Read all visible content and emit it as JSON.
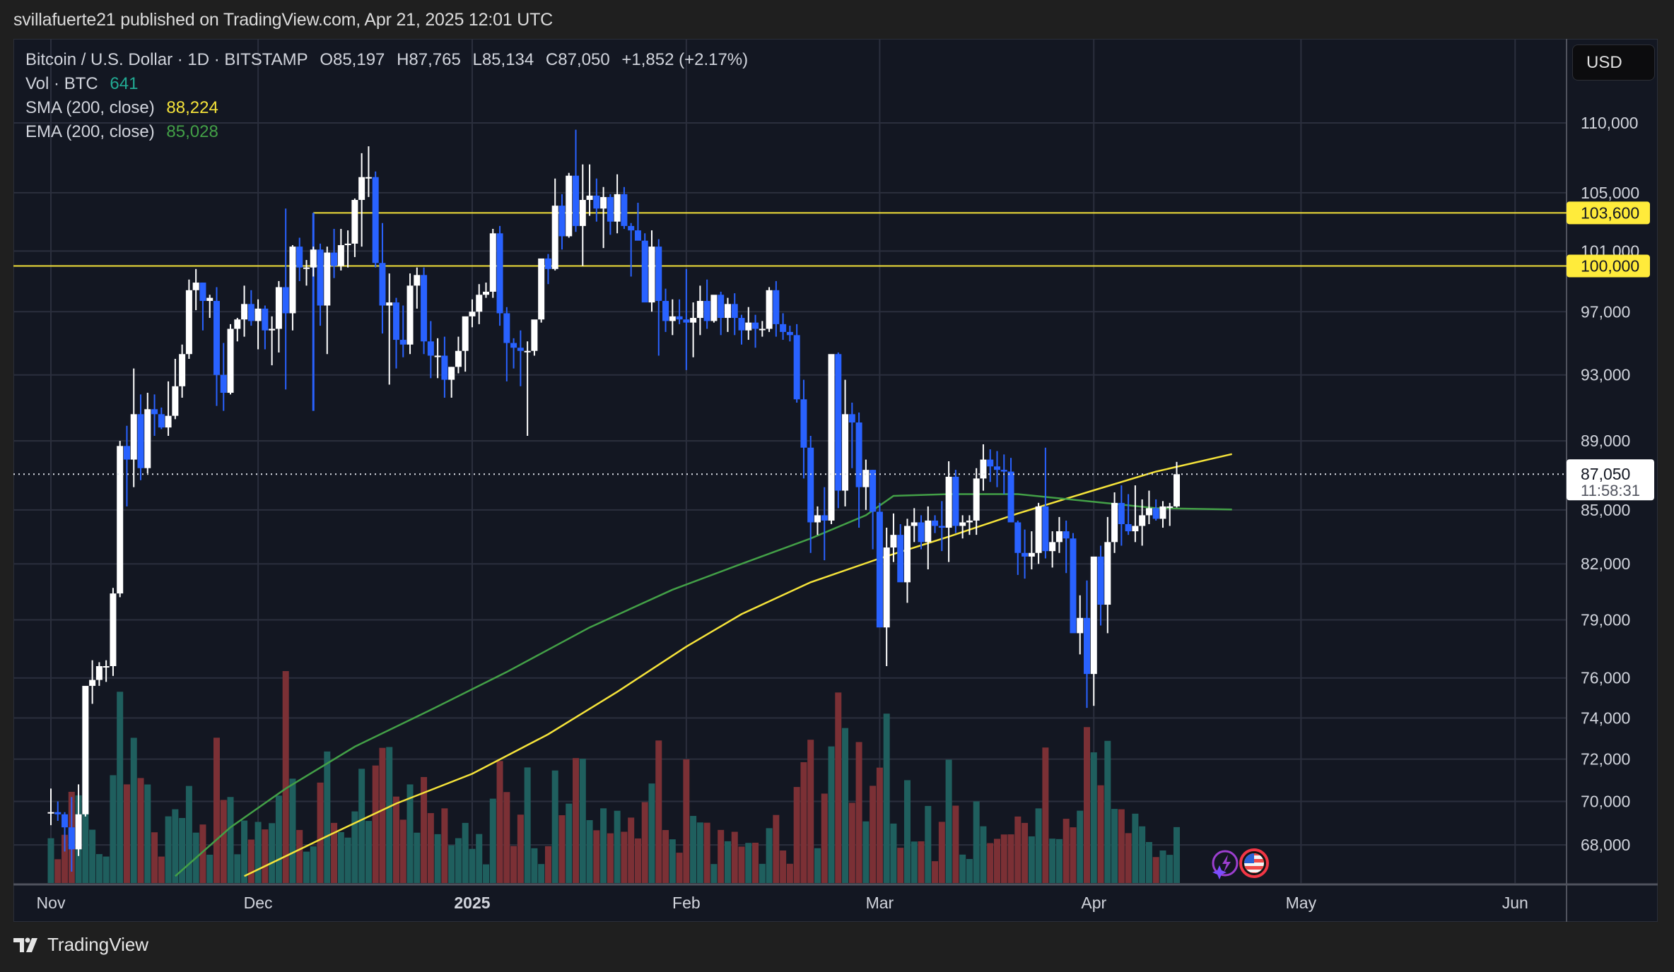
{
  "header": {
    "publish_line": "svillafuerte21 published on TradingView.com, Apr 21, 2025 12:01 UTC"
  },
  "legend": {
    "symbol_line": "Bitcoin / U.S. Dollar · 1D · BITSTAMP",
    "open": "O85,197",
    "high": "H87,765",
    "low": "L85,134",
    "close": "C87,050",
    "change": "+1,852 (+2.17%)",
    "volume_label": "Vol · BTC",
    "volume_value": "641",
    "sma_label": "SMA (200, close)",
    "sma_value": "88,224",
    "ema_label": "EMA (200, close)",
    "ema_value": "85,028"
  },
  "price_axis": {
    "currency_button": "USD",
    "ticks": [
      "110,000",
      "105,000",
      "101,000",
      "97,000",
      "93,000",
      "89,000",
      "85,000",
      "82,000",
      "79,000",
      "76,000",
      "74,000",
      "72,000",
      "70,000",
      "68,000"
    ],
    "tick_values": [
      110000,
      105000,
      101000,
      97000,
      93000,
      89000,
      85000,
      82000,
      79000,
      76000,
      74000,
      72000,
      70000,
      68000
    ],
    "last_price_label": "87,050",
    "countdown": "11:58:31",
    "level_labels": [
      "103,600",
      "100,000"
    ]
  },
  "time_axis": {
    "labels": [
      {
        "text": "Nov",
        "day": 0,
        "bold": false
      },
      {
        "text": "Dec",
        "day": 30,
        "bold": false
      },
      {
        "text": "2025",
        "day": 61,
        "bold": true
      },
      {
        "text": "Feb",
        "day": 92,
        "bold": false
      },
      {
        "text": "Mar",
        "day": 120,
        "bold": false
      },
      {
        "text": "Apr",
        "day": 151,
        "bold": false
      },
      {
        "text": "May",
        "day": 181,
        "bold": false
      },
      {
        "text": "Jun",
        "day": 212,
        "bold": false
      }
    ]
  },
  "footer": {
    "brand": "TradingView"
  },
  "colors": {
    "up_candle": "#ffffff",
    "down_candle": "#2962ff",
    "vol_up": "#1f5f5e",
    "vol_down": "#7b3035",
    "sma": "#f5e33a",
    "ema": "#43a047",
    "level_line": "#f5e33a",
    "grid": "#2b2f3d",
    "background": "#131722"
  },
  "chart_data": {
    "type": "candlestick",
    "title": "Bitcoin / U.S. Dollar · 1D · BITSTAMP",
    "xlabel": "",
    "ylabel": "USD",
    "y_scale": "log",
    "ylim": [
      66500,
      112000
    ],
    "x_start": "2024-11-01",
    "x_end": "2025-04-21",
    "grid": true,
    "legend_position": "top-left",
    "horizontal_levels": [
      103600,
      100000
    ],
    "last_close": 87050,
    "indicators": [
      {
        "name": "SMA (200, close)",
        "last": 88224,
        "color": "#f5e33a",
        "points": [
          [
            28,
            66600
          ],
          [
            40,
            68400
          ],
          [
            50,
            69900
          ],
          [
            61,
            71300
          ],
          [
            72,
            73200
          ],
          [
            82,
            75300
          ],
          [
            92,
            77600
          ],
          [
            100,
            79300
          ],
          [
            110,
            81000
          ],
          [
            120,
            82300
          ],
          [
            130,
            83500
          ],
          [
            140,
            84800
          ],
          [
            150,
            86000
          ],
          [
            160,
            87200
          ],
          [
            171,
            88224
          ]
        ]
      },
      {
        "name": "EMA (200, close)",
        "last": 85028,
        "color": "#43a047",
        "points": [
          [
            18,
            66600
          ],
          [
            26,
            68800
          ],
          [
            34,
            70600
          ],
          [
            44,
            72600
          ],
          [
            55,
            74400
          ],
          [
            66,
            76300
          ],
          [
            78,
            78600
          ],
          [
            90,
            80600
          ],
          [
            100,
            82000
          ],
          [
            110,
            83400
          ],
          [
            118,
            84700
          ],
          [
            122,
            85800
          ],
          [
            130,
            85900
          ],
          [
            140,
            85900
          ],
          [
            150,
            85500
          ],
          [
            160,
            85100
          ],
          [
            171,
            85028
          ]
        ]
      }
    ],
    "candles": [
      [
        0,
        69500,
        70600,
        68900,
        69500
      ],
      [
        1,
        69500,
        70000,
        69100,
        69400
      ],
      [
        2,
        69400,
        69500,
        67700,
        68800
      ],
      [
        3,
        68800,
        70200,
        66800,
        67800
      ],
      [
        4,
        67800,
        70800,
        67500,
        69400
      ],
      [
        5,
        69400,
        75300,
        69300,
        75600
      ],
      [
        6,
        75600,
        76900,
        74700,
        75900
      ],
      [
        7,
        75900,
        76800,
        75600,
        76600
      ],
      [
        8,
        76600,
        76900,
        75800,
        76600
      ],
      [
        9,
        76600,
        80700,
        76100,
        80400
      ],
      [
        10,
        80400,
        89000,
        80200,
        88700
      ],
      [
        11,
        88700,
        89900,
        85200,
        87900
      ],
      [
        12,
        87900,
        93400,
        86300,
        90600
      ],
      [
        13,
        90600,
        91800,
        86700,
        87400
      ],
      [
        14,
        87400,
        91900,
        87100,
        90900
      ],
      [
        15,
        90900,
        91800,
        89300,
        90600
      ],
      [
        16,
        90600,
        91000,
        89700,
        89800
      ],
      [
        17,
        89800,
        92600,
        89300,
        90500
      ],
      [
        18,
        90500,
        94000,
        90300,
        92300
      ],
      [
        19,
        92300,
        94900,
        91600,
        94300
      ],
      [
        20,
        94300,
        99100,
        94000,
        98400
      ],
      [
        21,
        98400,
        99800,
        97100,
        98900
      ],
      [
        22,
        98900,
        98900,
        95800,
        97700
      ],
      [
        23,
        97700,
        98100,
        96600,
        97900
      ],
      [
        24,
        97700,
        98600,
        91100,
        93000
      ],
      [
        25,
        93000,
        95000,
        90800,
        91900
      ],
      [
        26,
        91900,
        96200,
        91800,
        95900
      ],
      [
        27,
        95900,
        96600,
        95100,
        96500
      ],
      [
        28,
        96500,
        98700,
        95400,
        97500
      ],
      [
        29,
        97500,
        98400,
        96100,
        96400
      ],
      [
        30,
        96400,
        97800,
        94600,
        97200
      ],
      [
        31,
        97200,
        97400,
        94600,
        95800
      ],
      [
        32,
        95800,
        96700,
        93600,
        95900
      ],
      [
        33,
        95900,
        99000,
        94400,
        98600
      ],
      [
        34,
        98600,
        103900,
        92100,
        96900
      ],
      [
        35,
        96900,
        101400,
        95800,
        101300
      ],
      [
        36,
        101300,
        101900,
        99000,
        99900
      ],
      [
        37,
        99900,
        100400,
        98700,
        99900
      ],
      [
        38,
        99900,
        101300,
        99300,
        101100
      ],
      [
        39,
        101100,
        101500,
        96100,
        97400
      ],
      [
        40,
        97400,
        101300,
        94300,
        100900
      ],
      [
        41,
        100900,
        102500,
        99200,
        100000
      ],
      [
        42,
        100000,
        102500,
        99700,
        101400
      ],
      [
        43,
        101400,
        102400,
        99900,
        101500
      ],
      [
        44,
        101500,
        104600,
        100600,
        104500
      ],
      [
        45,
        104500,
        107800,
        101300,
        106100
      ],
      [
        46,
        106100,
        108300,
        104700,
        106100
      ],
      [
        47,
        106100,
        106500,
        99900,
        100200
      ],
      [
        48,
        100200,
        102900,
        95600,
        97400
      ],
      [
        49,
        97400,
        99500,
        92400,
        97600
      ],
      [
        50,
        97600,
        97900,
        93400,
        95200
      ],
      [
        51,
        95200,
        97400,
        94100,
        94900
      ],
      [
        52,
        94900,
        99500,
        94300,
        98700
      ],
      [
        53,
        98700,
        99900,
        97200,
        99400
      ],
      [
        54,
        99400,
        99900,
        94300,
        95100
      ],
      [
        55,
        95100,
        96400,
        92800,
        94200
      ],
      [
        56,
        94200,
        95300,
        92800,
        94200
      ],
      [
        57,
        94200,
        95400,
        91600,
        92700
      ],
      [
        58,
        92700,
        93500,
        91600,
        93500
      ],
      [
        59,
        93500,
        95400,
        93100,
        94500
      ],
      [
        60,
        94500,
        96300,
        93200,
        96700
      ],
      [
        61,
        96700,
        97800,
        96000,
        97000
      ],
      [
        62,
        97000,
        98800,
        96200,
        98100
      ],
      [
        63,
        98100,
        98900,
        97900,
        98300
      ],
      [
        64,
        98300,
        102500,
        97900,
        102200
      ],
      [
        65,
        102200,
        102700,
        96100,
        96900
      ],
      [
        66,
        96900,
        97300,
        92600,
        95000
      ],
      [
        67,
        95000,
        95300,
        93400,
        94700
      ],
      [
        68,
        94700,
        95800,
        92300,
        94500
      ],
      [
        69,
        94500,
        95100,
        89300,
        94500
      ],
      [
        70,
        94500,
        96000,
        94200,
        96500
      ],
      [
        71,
        96500,
        97300,
        96300,
        100500
      ],
      [
        72,
        100500,
        100800,
        98800,
        99800
      ],
      [
        73,
        99800,
        106000,
        99700,
        104100
      ],
      [
        74,
        104100,
        104900,
        101100,
        102000
      ],
      [
        75,
        102000,
        106400,
        101900,
        106200
      ],
      [
        76,
        106200,
        109500,
        102300,
        102700
      ],
      [
        77,
        102700,
        107000,
        100000,
        104500
      ],
      [
        78,
        104500,
        107000,
        103400,
        104800
      ],
      [
        79,
        104800,
        106000,
        103000,
        103900
      ],
      [
        80,
        103900,
        105400,
        101200,
        104700
      ],
      [
        81,
        104700,
        104900,
        102100,
        103000
      ],
      [
        82,
        103000,
        106300,
        102200,
        104900
      ],
      [
        83,
        104900,
        105400,
        102500,
        102700
      ],
      [
        84,
        102700,
        102900,
        99300,
        102400
      ],
      [
        85,
        102400,
        104300,
        101800,
        101700
      ],
      [
        86,
        101700,
        102200,
        97800,
        97600
      ],
      [
        87,
        97600,
        102400,
        97000,
        101300
      ],
      [
        88,
        101300,
        101800,
        94200,
        97700
      ],
      [
        89,
        97700,
        98500,
        95700,
        96400
      ],
      [
        90,
        96400,
        97800,
        95500,
        96700
      ],
      [
        91,
        96700,
        97800,
        96200,
        96500
      ],
      [
        92,
        96500,
        99800,
        93300,
        96300
      ],
      [
        93,
        96300,
        97600,
        94100,
        96600
      ],
      [
        94,
        96600,
        98700,
        95500,
        97700
      ],
      [
        95,
        97700,
        99100,
        95900,
        96400
      ],
      [
        96,
        96400,
        97300,
        96300,
        98100
      ],
      [
        97,
        98100,
        98300,
        95500,
        96600
      ],
      [
        98,
        96600,
        97900,
        95700,
        97500
      ],
      [
        99,
        97500,
        98200,
        95500,
        96600
      ],
      [
        100,
        96600,
        96800,
        94900,
        95800
      ],
      [
        101,
        95800,
        97300,
        95200,
        96300
      ],
      [
        102,
        96300,
        96800,
        94700,
        95900
      ],
      [
        103,
        95900,
        96400,
        95400,
        95900
      ],
      [
        104,
        95900,
        98600,
        95700,
        98400
      ],
      [
        105,
        98400,
        99000,
        95400,
        96200
      ],
      [
        106,
        96200,
        96900,
        95200,
        95700
      ],
      [
        107,
        95700,
        96100,
        95100,
        95500
      ],
      [
        108,
        95500,
        96200,
        91300,
        91500
      ],
      [
        109,
        91500,
        92700,
        86800,
        88600
      ],
      [
        110,
        88600,
        89300,
        82600,
        84300
      ],
      [
        111,
        84300,
        85200,
        83600,
        84700
      ],
      [
        112,
        84700,
        86300,
        82200,
        84400
      ],
      [
        113,
        84400,
        90700,
        84200,
        94300
      ],
      [
        114,
        94300,
        94400,
        85100,
        86100
      ],
      [
        115,
        86100,
        92700,
        85200,
        90600
      ],
      [
        116,
        90600,
        91300,
        87400,
        90100
      ],
      [
        117,
        90100,
        90700,
        84000,
        86300
      ],
      [
        118,
        86300,
        87900,
        85000,
        87300
      ],
      [
        119,
        87300,
        87300,
        82800,
        84900
      ],
      [
        120,
        84900,
        85400,
        80200,
        78600
      ],
      [
        121,
        78600,
        84000,
        76600,
        82900
      ],
      [
        122,
        82900,
        84800,
        82100,
        83600
      ],
      [
        123,
        83600,
        84200,
        82600,
        81000
      ],
      [
        124,
        81000,
        84500,
        79900,
        84100
      ],
      [
        125,
        84100,
        85100,
        83200,
        84300
      ],
      [
        126,
        84300,
        84700,
        82800,
        83200
      ],
      [
        127,
        83200,
        85200,
        81700,
        84400
      ],
      [
        128,
        84400,
        84700,
        83700,
        84100
      ],
      [
        129,
        84100,
        85500,
        82700,
        84000
      ],
      [
        130,
        84000,
        87800,
        82100,
        86900
      ],
      [
        131,
        86900,
        87300,
        83700,
        84100
      ],
      [
        132,
        84100,
        84700,
        83400,
        84300
      ],
      [
        133,
        84300,
        84700,
        83600,
        84400
      ],
      [
        134,
        84400,
        87400,
        83600,
        86800
      ],
      [
        135,
        86800,
        88800,
        86100,
        87900
      ],
      [
        136,
        87900,
        88500,
        86600,
        87500
      ],
      [
        137,
        87500,
        88400,
        86300,
        87300
      ],
      [
        138,
        87300,
        88200,
        85900,
        87200
      ],
      [
        139,
        87200,
        88000,
        85700,
        84300
      ],
      [
        140,
        84300,
        84400,
        81400,
        82600
      ],
      [
        141,
        82600,
        83900,
        81200,
        82400
      ],
      [
        142,
        82400,
        83800,
        81700,
        82600
      ],
      [
        143,
        82600,
        85400,
        82000,
        85200
      ],
      [
        144,
        85200,
        88600,
        82300,
        82700
      ],
      [
        145,
        82700,
        83800,
        81800,
        83200
      ],
      [
        146,
        83200,
        84600,
        82600,
        83800
      ],
      [
        147,
        83800,
        84400,
        81500,
        83400
      ],
      [
        148,
        83400,
        83700,
        81200,
        78300
      ],
      [
        149,
        78300,
        80300,
        77200,
        79100
      ],
      [
        150,
        79100,
        81100,
        74500,
        76200
      ],
      [
        151,
        76200,
        80100,
        74600,
        82400
      ],
      [
        152,
        82400,
        83000,
        78700,
        79800
      ],
      [
        153,
        79800,
        84600,
        78300,
        83200
      ],
      [
        154,
        83200,
        86000,
        82600,
        85400
      ],
      [
        155,
        85400,
        86400,
        83000,
        84200
      ],
      [
        156,
        84200,
        85900,
        83600,
        83800
      ],
      [
        157,
        83800,
        86400,
        83200,
        84100
      ],
      [
        158,
        84100,
        85600,
        83000,
        84700
      ],
      [
        159,
        84700,
        86100,
        84200,
        85100
      ],
      [
        160,
        85100,
        85600,
        84400,
        84500
      ],
      [
        161,
        84500,
        85500,
        84000,
        85200
      ],
      [
        162,
        85200,
        85400,
        84100,
        85200
      ],
      [
        163,
        85200,
        87765,
        85134,
        87050
      ]
    ],
    "volume": {
      "label": "Vol · BTC",
      "last": 641
    }
  }
}
